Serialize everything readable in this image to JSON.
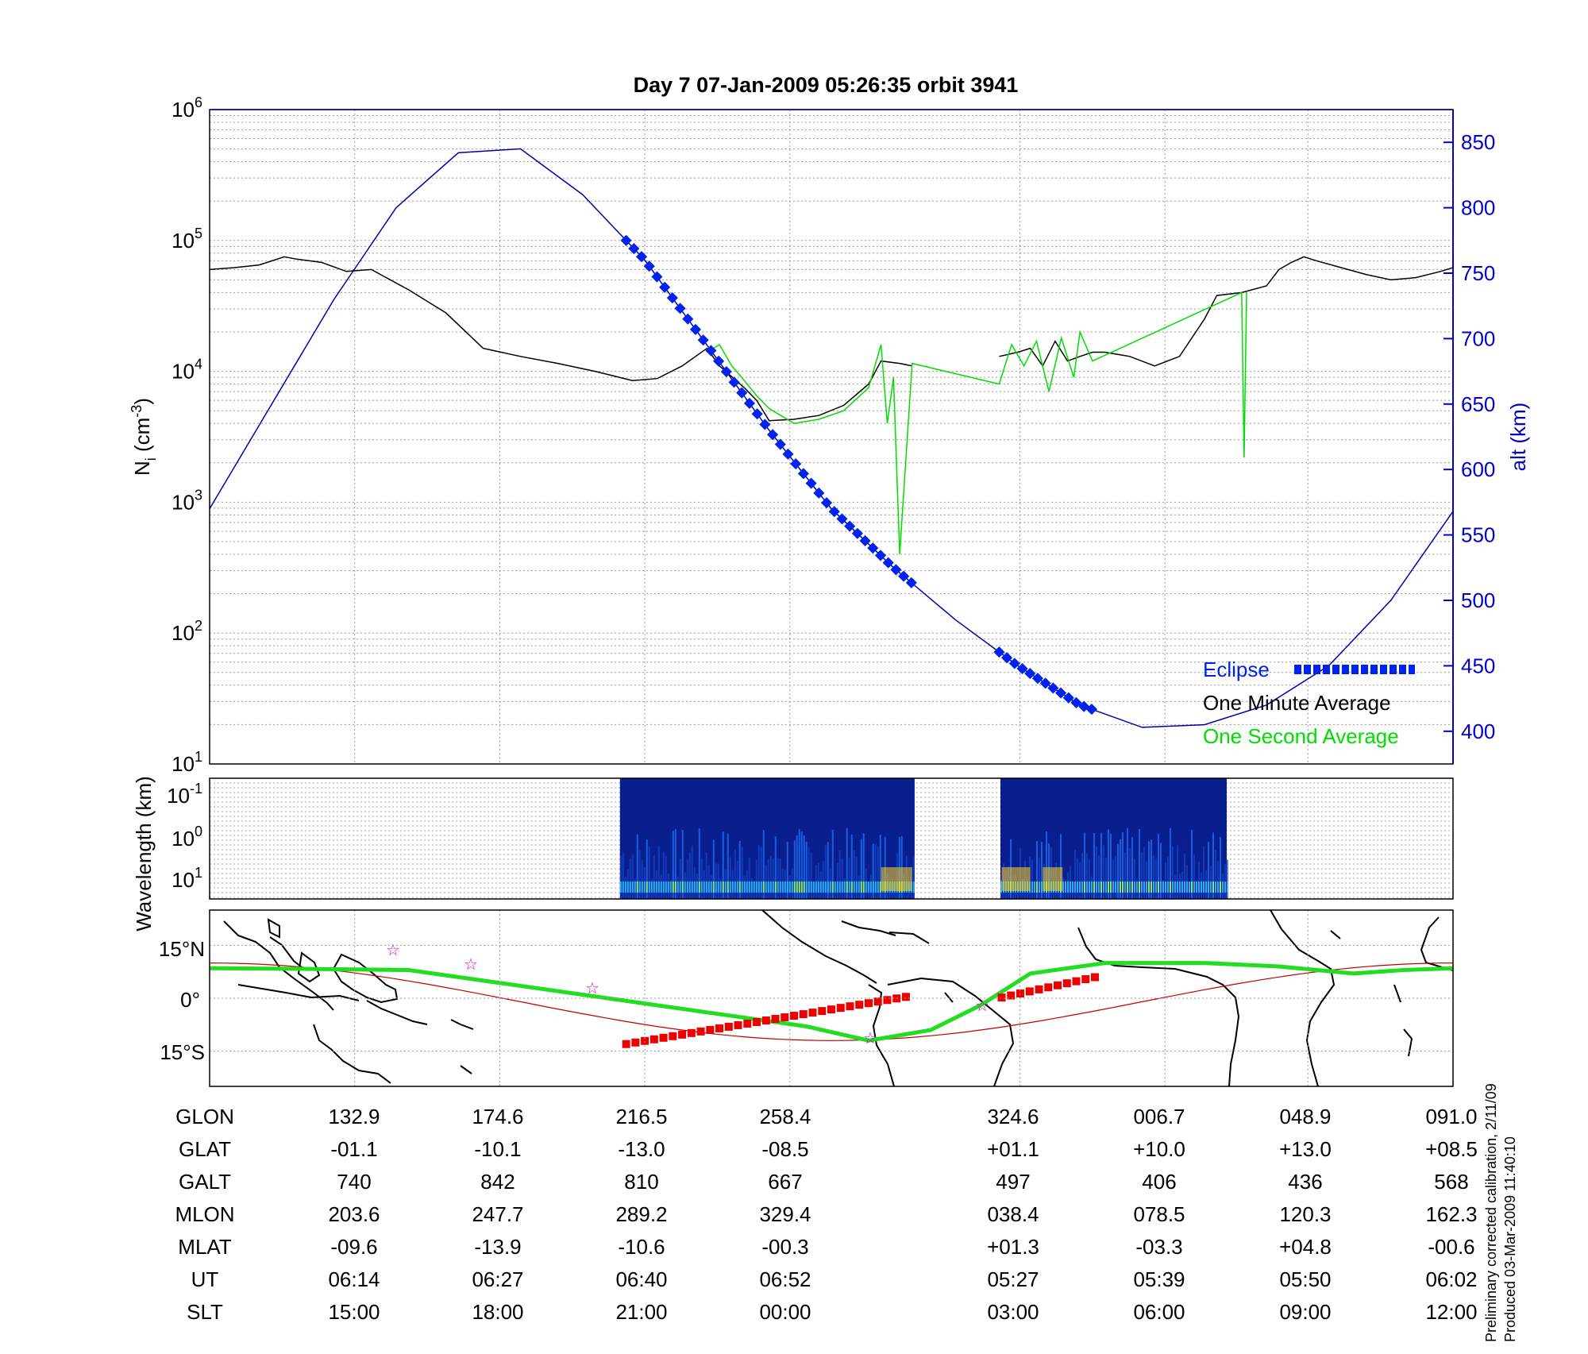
{
  "chart_data": [
    {
      "type": "line",
      "title": "Day 7  07-Jan-2009 05:26:35   orbit 3941",
      "ylabel": "N",
      "ylabel_sub": "i",
      "ylabel_units_open": " (cm",
      "ylabel_units_exp": "-3",
      "ylabel_units_close": ")",
      "yscale": "log",
      "ylim": [
        10,
        1000000
      ],
      "y_ticks": [
        {
          "base": "10",
          "exp": "1"
        },
        {
          "base": "10",
          "exp": "2"
        },
        {
          "base": "10",
          "exp": "3"
        },
        {
          "base": "10",
          "exp": "4"
        },
        {
          "base": "10",
          "exp": "5"
        },
        {
          "base": "10",
          "exp": "6"
        }
      ],
      "y2label": "alt (km)",
      "y2lim": [
        375,
        875
      ],
      "y2_ticks": [
        "400",
        "450",
        "500",
        "550",
        "600",
        "650",
        "700",
        "750",
        "800",
        "850"
      ],
      "xlim": [
        0,
        1
      ],
      "grid": true,
      "series": [
        {
          "name": "One Minute Average",
          "color": "#000000",
          "x": [
            0,
            0.02,
            0.04,
            0.06,
            0.07,
            0.09,
            0.11,
            0.13,
            0.16,
            0.19,
            0.22,
            0.25,
            0.28,
            0.31,
            0.34,
            0.36,
            0.38,
            0.4,
            0.41,
            0.43,
            0.44,
            0.45,
            0.47,
            0.49,
            0.51,
            0.53,
            0.54,
            0.555,
            0.565
          ],
          "y": [
            60000,
            62000,
            65000,
            75000,
            72000,
            68000,
            58000,
            60000,
            42000,
            28000,
            15000,
            13000,
            11500,
            10000,
            8500,
            8800,
            11000,
            15000,
            11000,
            7500,
            6000,
            4200,
            4300,
            4600,
            5500,
            8000,
            12000,
            11500,
            11000
          ]
        },
        {
          "name": "One Minute Average",
          "color": "#000000",
          "x": [
            0.635,
            0.65,
            0.66,
            0.67,
            0.68,
            0.69,
            0.7,
            0.71,
            0.72,
            0.74,
            0.76,
            0.78,
            0.8,
            0.81,
            0.83,
            0.85,
            0.86,
            0.87,
            0.88,
            0.89,
            0.91,
            0.93,
            0.95,
            0.97,
            0.99,
            1.0
          ],
          "y": [
            13000,
            14000,
            15000,
            11000,
            17000,
            12000,
            13000,
            14000,
            14000,
            13000,
            11000,
            13000,
            25000,
            38000,
            40000,
            45000,
            60000,
            68000,
            75000,
            70000,
            62000,
            55000,
            50000,
            52000,
            58000,
            62000
          ]
        },
        {
          "name": "One Second Average",
          "color": "#00dd00",
          "x": [
            0.4,
            0.41,
            0.42,
            0.43,
            0.44,
            0.45,
            0.47,
            0.49,
            0.51,
            0.53,
            0.54,
            0.545,
            0.55,
            0.555,
            0.565,
            0.635,
            0.645,
            0.655,
            0.665,
            0.675,
            0.685,
            0.695,
            0.7,
            0.71,
            0.83,
            0.832,
            0.834
          ],
          "y": [
            14000,
            16000,
            11000,
            8500,
            6500,
            5200,
            4000,
            4300,
            5000,
            7500,
            16000,
            4000,
            9000,
            400,
            11500,
            8000,
            16000,
            11000,
            17000,
            7000,
            18000,
            9000,
            20000,
            12000,
            40000,
            2200,
            40000
          ]
        }
      ],
      "altitude_km": {
        "x": [
          0,
          0.05,
          0.1,
          0.15,
          0.2,
          0.25,
          0.3,
          0.35,
          0.4,
          0.45,
          0.5,
          0.55,
          0.6,
          0.65,
          0.7,
          0.75,
          0.8,
          0.85,
          0.9,
          0.95,
          1.0
        ],
        "y": [
          570,
          650,
          730,
          800,
          842,
          845,
          810,
          760,
          695,
          630,
          570,
          525,
          485,
          450,
          420,
          403,
          405,
          420,
          450,
          500,
          568
        ]
      },
      "eclipse": [
        [
          0.335,
          0.567
        ],
        [
          0.635,
          0.715
        ]
      ],
      "legend": [
        "Eclipse",
        "One Minute Average",
        "One Second Average"
      ],
      "legend_position": "bottom-right"
    },
    {
      "type": "heatmap",
      "ylabel": "Wavelength (km)",
      "y_ticks": [
        {
          "base": "10",
          "exp": "-1"
        },
        {
          "base": "10",
          "exp": "0"
        },
        {
          "base": "10",
          "exp": "1"
        }
      ],
      "active_segments": [
        [
          0.33,
          0.567
        ],
        [
          0.636,
          0.818
        ]
      ],
      "note": "spectrogram; colour scale not labelled"
    },
    {
      "type": "map",
      "lat_ticks": [
        "15°N",
        "0°",
        "15°S"
      ],
      "lat_range": [
        -25,
        25
      ],
      "ground_track": "green",
      "eclipse_track": "red",
      "magnetic_equator": "red-thin"
    }
  ],
  "table": {
    "rows": [
      {
        "label": "GLON",
        "values": [
          "132.9",
          "174.6",
          "216.5",
          "258.4",
          "324.6",
          "006.7",
          "048.9",
          "091.0"
        ]
      },
      {
        "label": "GLAT",
        "values": [
          "-01.1",
          "-10.1",
          "-13.0",
          "-08.5",
          "+01.1",
          "+10.0",
          "+13.0",
          "+08.5"
        ]
      },
      {
        "label": "GALT",
        "values": [
          "740",
          "842",
          "810",
          "667",
          "497",
          "406",
          "436",
          "568"
        ]
      },
      {
        "label": "MLON",
        "values": [
          "203.6",
          "247.7",
          "289.2",
          "329.4",
          "038.4",
          "078.5",
          "120.3",
          "162.3"
        ]
      },
      {
        "label": "MLAT",
        "values": [
          "-09.6",
          "-13.9",
          "-10.6",
          "-00.3",
          "+01.3",
          "-03.3",
          "+04.8",
          "-00.6"
        ]
      },
      {
        "label": "UT",
        "values": [
          "06:14",
          "06:27",
          "06:40",
          "06:52",
          "05:27",
          "05:39",
          "05:50",
          "06:02"
        ]
      },
      {
        "label": "SLT",
        "values": [
          "15:00",
          "18:00",
          "21:00",
          "00:00",
          "03:00",
          "06:00",
          "09:00",
          "12:00"
        ]
      }
    ]
  },
  "side_note": {
    "line1": "Preliminary corrected calibration, 2/11/09",
    "line2": "Produced 03-Mar-2009 11:40:10"
  },
  "colors": {
    "axis_blue": "#0000cc",
    "eclipse": "#0022ee",
    "minute": "#000000",
    "second": "#00dd00",
    "track": "#22dd22",
    "eclipse_track": "#ee0000"
  }
}
